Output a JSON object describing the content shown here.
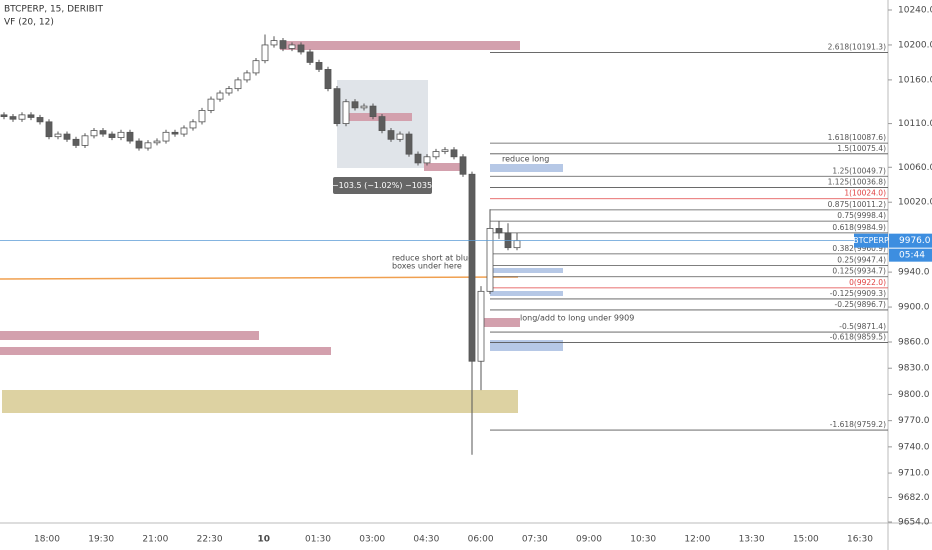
{
  "chart_data": {
    "type": "candlestick",
    "title": "BTCPERP, 15, DERIBIT",
    "subtitle": "VF (20, 12)",
    "ylim": [
      9654,
      10240
    ],
    "yticks": [
      {
        "value": 10240,
        "label": "10240.0"
      },
      {
        "value": 10200,
        "label": "10200.0"
      },
      {
        "value": 10160,
        "label": "10160.0"
      },
      {
        "value": 10110,
        "label": "10110.0"
      },
      {
        "value": 10060,
        "label": "10060.0"
      },
      {
        "value": 10020,
        "label": "10020.0"
      },
      {
        "value": 9940,
        "label": "9940.0"
      },
      {
        "value": 9900,
        "label": "9900.0"
      },
      {
        "value": 9860,
        "label": "9860.0"
      },
      {
        "value": 9830,
        "label": "9830.0"
      },
      {
        "value": 9800,
        "label": "9800.0"
      },
      {
        "value": 9770,
        "label": "9770.0"
      },
      {
        "value": 9740,
        "label": "9740.0"
      },
      {
        "value": 9710,
        "label": "9710.0"
      },
      {
        "value": 9682,
        "label": "9682.0"
      },
      {
        "value": 9654,
        "label": "9654.0"
      }
    ],
    "time_labels": [
      "18:00",
      "19:30",
      "21:00",
      "22:30",
      "10",
      "01:30",
      "03:00",
      "04:30",
      "06:00",
      "07:30",
      "09:00",
      "10:30",
      "12:00",
      "13:30",
      "15:00",
      "16:30"
    ],
    "candles": {
      "open": [
        10120,
        10118,
        10115,
        10120,
        10117,
        10112,
        10095,
        10098,
        10092,
        10085,
        10096,
        10102,
        10098,
        10094,
        10100,
        10090,
        10082,
        10088,
        10090,
        10100,
        10098,
        10105,
        10112,
        10125,
        10138,
        10145,
        10150,
        10160,
        10168,
        10182,
        10200,
        10205,
        10196,
        10200,
        10192,
        10180,
        10172,
        10150,
        10110,
        10135,
        10128,
        10130,
        10118,
        10102,
        10092,
        10098,
        10075,
        10065,
        10072,
        10078,
        10080,
        10072,
        10052,
        9838,
        9918,
        9990,
        9985,
        9968
      ],
      "high": [
        10123,
        10121,
        10123,
        10123,
        10120,
        10115,
        10101,
        10101,
        10095,
        10099,
        10105,
        10105,
        10101,
        10103,
        10103,
        10093,
        10091,
        10093,
        10103,
        10103,
        10108,
        10115,
        10128,
        10141,
        10148,
        10153,
        10163,
        10171,
        10185,
        10212,
        10210,
        10208,
        10203,
        10203,
        10195,
        10183,
        10175,
        10153,
        10138,
        10138,
        10133,
        10133,
        10121,
        10105,
        10101,
        10101,
        10078,
        10075,
        10081,
        10083,
        10083,
        10075,
        10055,
        9924,
        10012,
        9998,
        9996,
        9985
      ],
      "low": [
        10115,
        10112,
        10112,
        10114,
        10109,
        10092,
        10092,
        10089,
        10082,
        10082,
        10093,
        10095,
        10091,
        10091,
        10087,
        10079,
        10079,
        10085,
        10087,
        10095,
        10095,
        10102,
        10109,
        10122,
        10135,
        10142,
        10147,
        10157,
        10165,
        10179,
        10197,
        10193,
        10193,
        10189,
        10177,
        10169,
        10147,
        10107,
        10107,
        10125,
        10125,
        10115,
        10099,
        10089,
        10089,
        10072,
        10062,
        10062,
        10069,
        10075,
        10069,
        10049,
        9731,
        9805,
        9915,
        9978,
        9965,
        9965
      ],
      "close": [
        10118,
        10115,
        10120,
        10117,
        10112,
        10095,
        10098,
        10092,
        10085,
        10096,
        10102,
        10098,
        10094,
        10100,
        10090,
        10082,
        10088,
        10090,
        10100,
        10098,
        10105,
        10112,
        10125,
        10138,
        10145,
        10150,
        10160,
        10168,
        10182,
        10200,
        10205,
        10196,
        10200,
        10192,
        10180,
        10172,
        10150,
        10110,
        10135,
        10128,
        10130,
        10118,
        10102,
        10092,
        10098,
        10075,
        10065,
        10072,
        10078,
        10080,
        10072,
        10052,
        9838,
        9918,
        9990,
        9985,
        9968,
        9976
      ]
    },
    "levels": [
      {
        "label": "2.618(10191.3)",
        "value": 10191.3,
        "color": "#555555"
      },
      {
        "label": "1.618(10087.6)",
        "value": 10087.6,
        "color": "#555555"
      },
      {
        "label": "1.5(10075.4)",
        "value": 10075.4,
        "color": "#555555"
      },
      {
        "label": "1.25(10049.7)",
        "value": 10049.7,
        "color": "#555555"
      },
      {
        "label": "1.125(10036.8)",
        "value": 10036.8,
        "color": "#555555"
      },
      {
        "label": "1(10024.0)",
        "value": 10024.0,
        "color": "#e04040"
      },
      {
        "label": "0.875(10011.2)",
        "value": 10011.2,
        "color": "#555555"
      },
      {
        "label": "0.75(9998.4)",
        "value": 9998.4,
        "color": "#555555"
      },
      {
        "label": "0.618(9984.9)",
        "value": 9984.9,
        "color": "#555555"
      },
      {
        "label": "0.382(9960.9)",
        "value": 9960.9,
        "color": "#555555"
      },
      {
        "label": "0.25(9947.4)",
        "value": 9947.4,
        "color": "#555555"
      },
      {
        "label": "0.125(9934.7)",
        "value": 9934.7,
        "color": "#555555"
      },
      {
        "label": "0(9922.0)",
        "value": 9922.0,
        "color": "#e04040"
      },
      {
        "label": "-0.125(9909.3)",
        "value": 9909.3,
        "color": "#555555"
      },
      {
        "label": "-0.25(9896.7)",
        "value": 9896.7,
        "color": "#555555"
      },
      {
        "label": "-0.5(9871.4)",
        "value": 9871.4,
        "color": "#555555"
      },
      {
        "label": "-0.618(9859.5)",
        "value": 9859.5,
        "color": "#555555"
      },
      {
        "label": "-1.618(9759.2)",
        "value": 9759.2,
        "color": "#555555"
      }
    ],
    "last_price": {
      "value": 9976,
      "label": "9976.0"
    },
    "symbol": "BTCPERP",
    "countdown": "05:44",
    "annotations": {
      "measure": "−103.5 (−1.02%) −1035",
      "reduce_long": "reduce long",
      "reduce_short": [
        "reduce short at blue",
        "boxes under here"
      ],
      "long_add": "long/add to long under 9909"
    }
  }
}
